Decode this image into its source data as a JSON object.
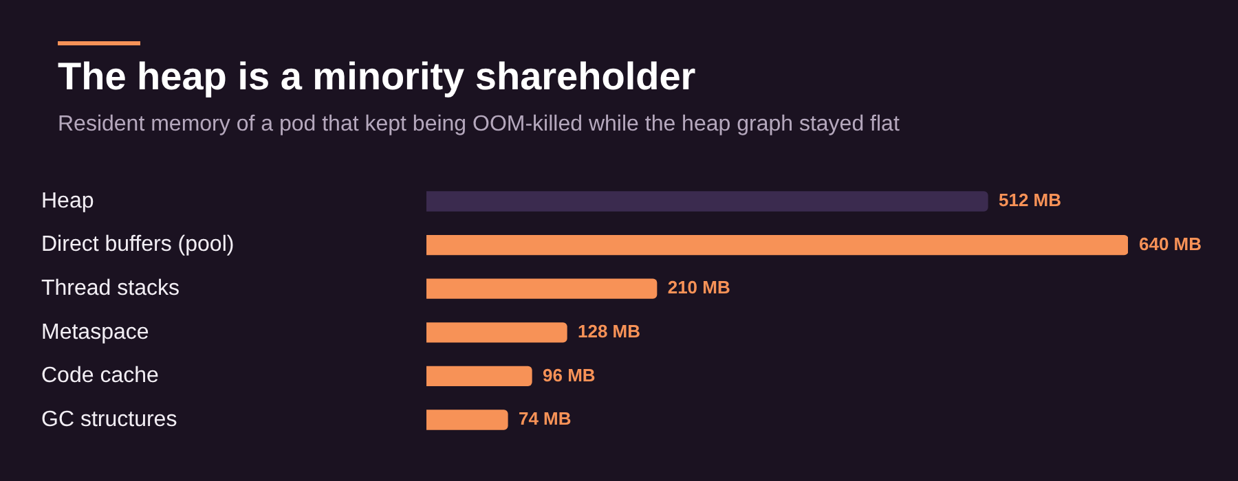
{
  "chart_data": {
    "type": "bar",
    "orientation": "horizontal",
    "title": "The heap is a minority shareholder",
    "subtitle": "Resident memory of a pod that kept being OOM-killed while the heap graph stayed flat",
    "categories": [
      "Heap",
      "Direct buffers (pool)",
      "Thread stacks",
      "Metaspace",
      "Code cache",
      "GC structures"
    ],
    "values": [
      512,
      640,
      210,
      128,
      96,
      74
    ],
    "colors": [
      "#3b2b4f",
      "#f79257",
      "#f79257",
      "#f79257",
      "#f79257",
      "#f79257"
    ],
    "value_labels": [
      "512 MB",
      "640 MB",
      "210 MB",
      "128 MB",
      "96 MB",
      "74 MB"
    ],
    "xlim": [
      0,
      640
    ],
    "tick_labels": "y",
    "grid": false,
    "legend": false
  }
}
